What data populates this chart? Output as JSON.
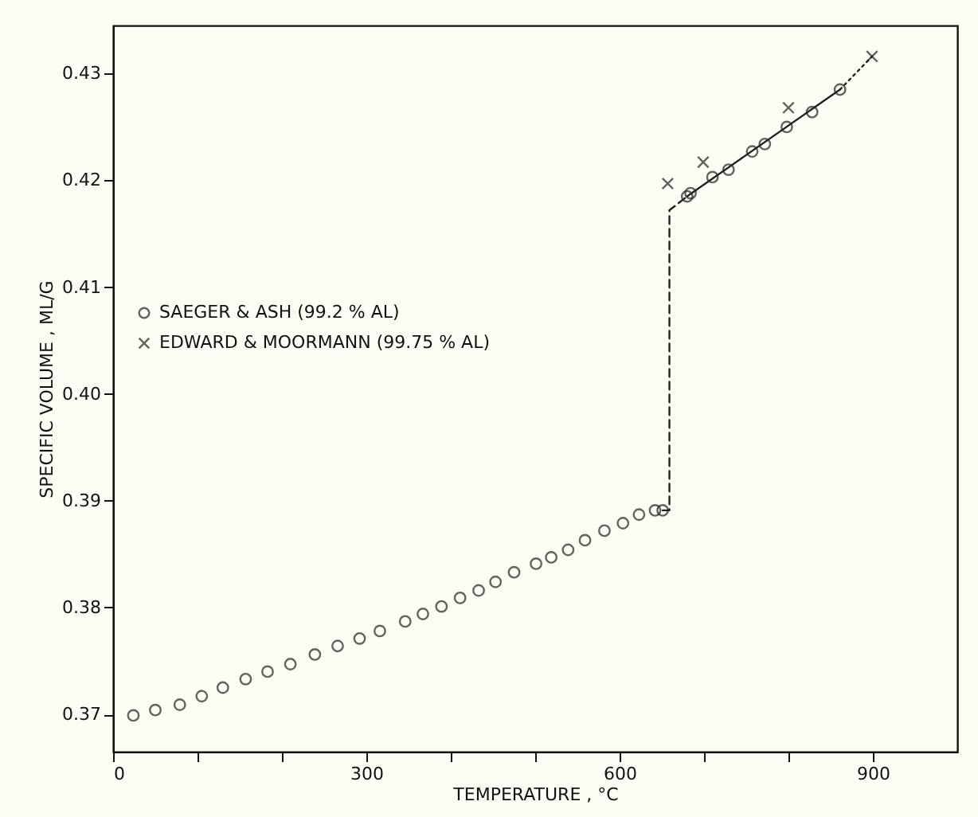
{
  "chart_data": {
    "type": "scatter",
    "xlabel": "TEMPERATURE , °C",
    "ylabel": "SPECIFIC VOLUME , ML/G",
    "xlim": [
      0,
      1000
    ],
    "ylim": [
      0.3665,
      0.4345
    ],
    "xticks": [
      0,
      {
        "value": 100,
        "label": null
      },
      {
        "value": 200,
        "label": null
      },
      300,
      {
        "value": 400,
        "label": null
      },
      {
        "value": 500,
        "label": null
      },
      600,
      {
        "value": 700,
        "label": null
      },
      {
        "value": 800,
        "label": null
      },
      900
    ],
    "yticks": [
      0.37,
      0.38,
      0.39,
      {
        "value": 0.4,
        "label": "0.40"
      },
      0.41,
      0.42,
      0.43
    ],
    "grid": false,
    "legend": "left",
    "series": [
      {
        "name": "SAEGER & ASH (99.2 % AL)",
        "color": "#222222",
        "marker": "circle",
        "x": [
          24,
          50,
          79,
          105,
          130,
          157,
          183,
          210,
          239,
          266,
          292,
          316,
          346,
          367,
          389,
          411,
          433,
          453,
          475,
          501,
          519,
          539,
          559,
          582,
          604,
          623,
          642,
          651,
          680,
          684,
          710,
          729,
          757,
          772,
          798,
          828,
          861
        ],
        "values": [
          0.3699,
          0.3704,
          0.3709,
          0.3717,
          0.3725,
          0.3733,
          0.374,
          0.3747,
          0.3756,
          0.3764,
          0.3771,
          0.3778,
          0.3787,
          0.3794,
          0.3801,
          0.3809,
          0.3816,
          0.3824,
          0.3833,
          0.3841,
          0.3847,
          0.3854,
          0.3863,
          0.3872,
          0.3879,
          0.3887,
          0.3891,
          0.3891,
          0.4185,
          0.4188,
          0.4203,
          0.421,
          0.4227,
          0.4234,
          0.425,
          0.4264,
          0.4285
        ]
      },
      {
        "name": "EDWARD & MOORMANN (99.75 % AL)",
        "color": "#222222",
        "marker": "cross",
        "x": [
          657,
          699,
          800,
          899
        ],
        "values": [
          0.4197,
          0.4217,
          0.4268,
          0.4316
        ]
      },
      {
        "type": "line",
        "color": "#222222",
        "line_style": "dashed",
        "x": [
          651,
          659,
          659,
          680
        ],
        "values": [
          0.3891,
          0.3891,
          0.4172,
          0.4185
        ]
      },
      {
        "type": "line",
        "color": "#222222",
        "line_style": "solid",
        "x": [
          680,
          861
        ],
        "values": [
          0.4185,
          0.4285
        ]
      },
      {
        "type": "line",
        "color": "#222222",
        "line_style": "dotted",
        "x": [
          861,
          899
        ],
        "values": [
          0.4285,
          0.4316
        ]
      }
    ]
  }
}
